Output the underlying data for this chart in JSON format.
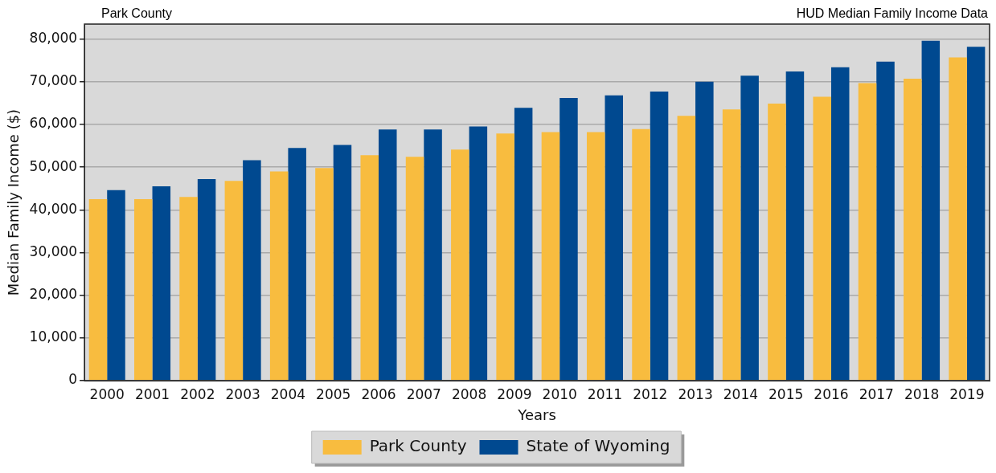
{
  "chart_data": {
    "type": "bar",
    "title": "Park County",
    "subtitle": "HUD Median Family Income Data",
    "xlabel": "Years",
    "ylabel": "Median Family Income ($)",
    "categories": [
      "2000",
      "2001",
      "2002",
      "2003",
      "2004",
      "2005",
      "2006",
      "2007",
      "2008",
      "2009",
      "2010",
      "2011",
      "2012",
      "2013",
      "2014",
      "2015",
      "2016",
      "2017",
      "2018",
      "2019"
    ],
    "series": [
      {
        "name": "Park County",
        "color": "#f8bc3f",
        "values": [
          42500,
          42500,
          43000,
          46800,
          49000,
          49800,
          52800,
          52400,
          54100,
          57900,
          58200,
          58200,
          58900,
          62000,
          63500,
          64900,
          66500,
          69700,
          70700,
          75700
        ]
      },
      {
        "name": "State of Wyoming",
        "color": "#004990",
        "values": [
          44600,
          45500,
          47200,
          51600,
          54500,
          55200,
          58800,
          58800,
          59500,
          63900,
          66200,
          66800,
          67700,
          70000,
          71400,
          72400,
          73400,
          74700,
          79600,
          78200
        ]
      }
    ],
    "ylim": [
      0,
      83500
    ],
    "yticks": [
      0,
      {
        "value": 10000,
        "label": "10,000"
      },
      {
        "value": 20000,
        "label": "20,000"
      },
      {
        "value": 30000,
        "label": "30,000"
      },
      {
        "value": 40000,
        "label": "40,000"
      },
      {
        "value": 50000,
        "label": "50,000"
      },
      {
        "value": 60000,
        "label": "60,000"
      },
      {
        "value": 70000,
        "label": "70,000"
      },
      {
        "value": 80000,
        "label": "80,000"
      }
    ],
    "grid": "y",
    "legend": "bottom"
  }
}
